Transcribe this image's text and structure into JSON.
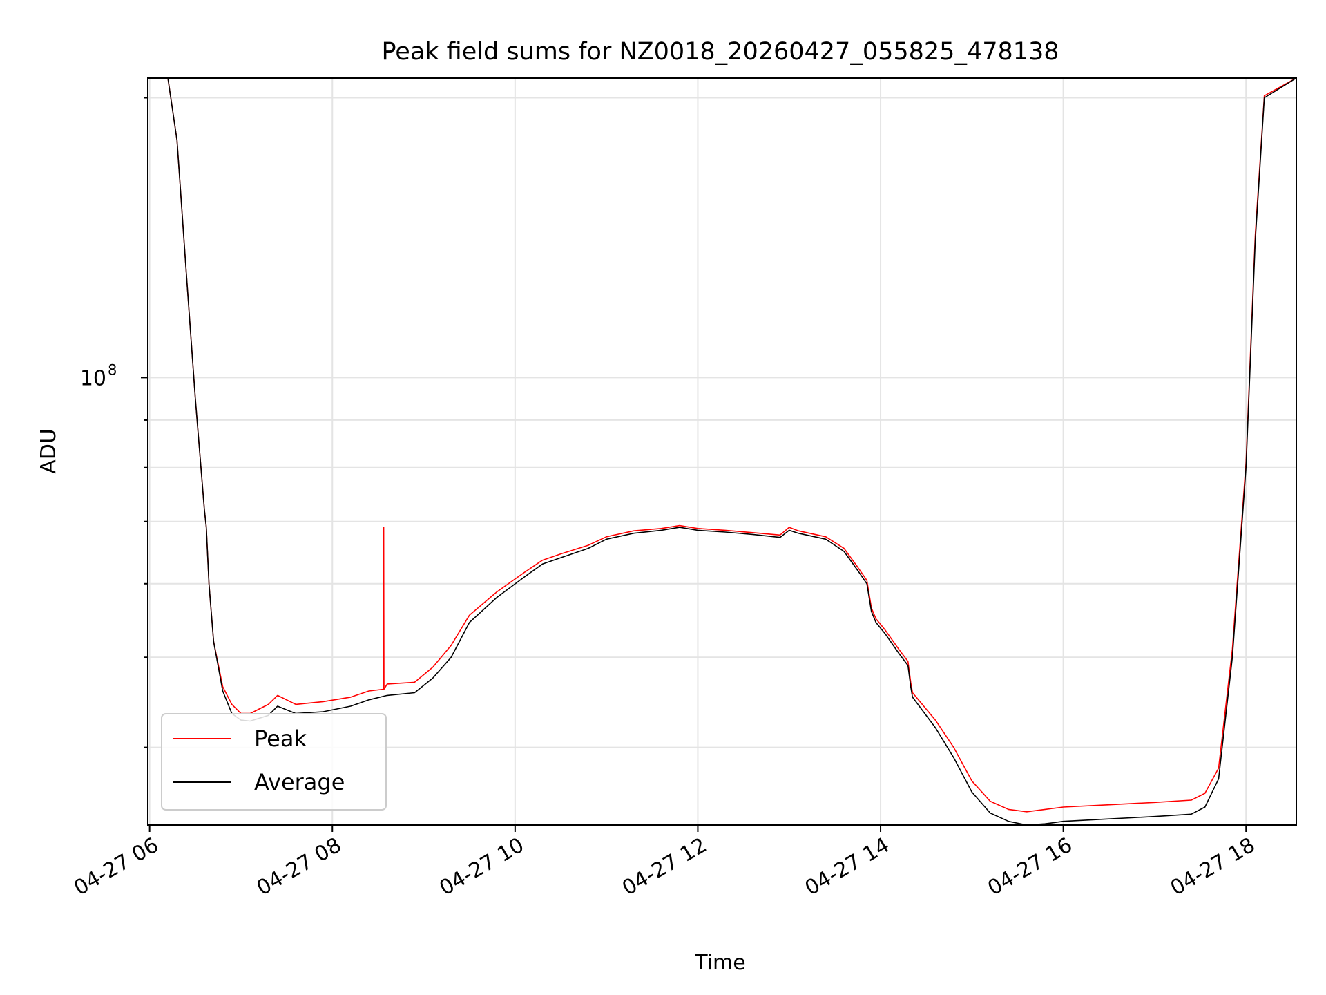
{
  "chart_data": {
    "type": "line",
    "title": "Peak field sums for NZ0018_20260427_055825_478138",
    "xlabel": "Time",
    "ylabel": "ADU",
    "yscale": "log",
    "grid": true,
    "xlim_hours": [
      5.98,
      18.55
    ],
    "ylim": [
      33000000,
      210000000
    ],
    "x_ticks": [
      {
        "hour": 6,
        "label": "04-27 06"
      },
      {
        "hour": 8,
        "label": "04-27 08"
      },
      {
        "hour": 10,
        "label": "04-27 10"
      },
      {
        "hour": 12,
        "label": "04-27 12"
      },
      {
        "hour": 14,
        "label": "04-27 14"
      },
      {
        "hour": 16,
        "label": "04-27 16"
      },
      {
        "hour": 18,
        "label": "04-27 18"
      }
    ],
    "y_major_ticks": [
      {
        "value": 100000000,
        "base": "10",
        "exponent": "8"
      }
    ],
    "y_minor_ticks": [
      40000000,
      50000000,
      60000000,
      70000000,
      80000000,
      90000000,
      200000000
    ],
    "legend": {
      "position": "lower-left",
      "entries": [
        {
          "label": "Peak",
          "color": "#ff0000"
        },
        {
          "label": "Average",
          "color": "#000000"
        }
      ]
    },
    "series": [
      {
        "name": "Average",
        "color": "#000000",
        "x_hours": [
          5.98,
          6.2,
          6.3,
          6.4,
          6.5,
          6.6,
          6.62,
          6.65,
          6.7,
          6.8,
          6.9,
          7.0,
          7.1,
          7.3,
          7.4,
          7.6,
          7.9,
          8.2,
          8.4,
          8.6,
          8.9,
          9.1,
          9.3,
          9.5,
          9.8,
          10.1,
          10.3,
          10.5,
          10.8,
          11.0,
          11.3,
          11.6,
          11.8,
          12.0,
          12.3,
          12.6,
          12.9,
          13.0,
          13.1,
          13.4,
          13.6,
          13.75,
          13.85,
          13.9,
          13.95,
          14.05,
          14.2,
          14.3,
          14.33,
          14.35,
          14.6,
          14.8,
          15.0,
          15.2,
          15.4,
          15.6,
          15.8,
          16.0,
          16.5,
          17.0,
          17.4,
          17.55,
          17.7,
          17.85,
          18.0,
          18.1,
          18.2,
          18.55
        ],
        "y": [
          210000000,
          210000000,
          180000000,
          130000000,
          95000000,
          72000000,
          69000000,
          60000000,
          52000000,
          46000000,
          43500000,
          42800000,
          42700000,
          43300000,
          44300000,
          43500000,
          43700000,
          44300000,
          45000000,
          45500000,
          45800000,
          47500000,
          50000000,
          54500000,
          58000000,
          61000000,
          63000000,
          64000000,
          65500000,
          67000000,
          68000000,
          68500000,
          69000000,
          68500000,
          68200000,
          67800000,
          67300000,
          68500000,
          68000000,
          67000000,
          65000000,
          62000000,
          60000000,
          56000000,
          54500000,
          53000000,
          50500000,
          49000000,
          46500000,
          45300000,
          42000000,
          39000000,
          35800000,
          34000000,
          33300000,
          33000000,
          33100000,
          33300000,
          33500000,
          33700000,
          33900000,
          34500000,
          37000000,
          50000000,
          80000000,
          140000000,
          200000000,
          210000000
        ]
      },
      {
        "name": "Peak",
        "color": "#ff0000",
        "x_hours": [
          5.98,
          6.2,
          6.3,
          6.4,
          6.5,
          6.6,
          6.62,
          6.65,
          6.7,
          6.8,
          6.9,
          7.0,
          7.1,
          7.3,
          7.4,
          7.6,
          7.9,
          8.2,
          8.4,
          8.56,
          8.562,
          8.565,
          8.6,
          8.9,
          9.1,
          9.3,
          9.5,
          9.8,
          10.1,
          10.3,
          10.5,
          10.8,
          11.0,
          11.3,
          11.6,
          11.8,
          12.0,
          12.3,
          12.6,
          12.9,
          13.0,
          13.1,
          13.4,
          13.6,
          13.75,
          13.85,
          13.9,
          13.95,
          14.05,
          14.2,
          14.3,
          14.33,
          14.35,
          14.6,
          14.8,
          15.0,
          15.2,
          15.4,
          15.6,
          15.8,
          16.0,
          16.5,
          17.0,
          17.4,
          17.55,
          17.7,
          17.85,
          18.0,
          18.1,
          18.2,
          18.55
        ],
        "y": [
          210000000,
          210000000,
          180000000,
          130000000,
          95000000,
          72000000,
          69000000,
          60000000,
          52000000,
          46500000,
          44500000,
          43500000,
          43500000,
          44500000,
          45500000,
          44500000,
          44800000,
          45300000,
          46000000,
          46200000,
          69000000,
          46200000,
          46800000,
          47000000,
          48800000,
          51500000,
          55500000,
          58800000,
          61700000,
          63600000,
          64600000,
          66000000,
          67400000,
          68400000,
          68800000,
          69300000,
          68800000,
          68500000,
          68100000,
          67700000,
          69000000,
          68400000,
          67400000,
          65500000,
          62500000,
          60500000,
          56500000,
          55000000,
          53500000,
          51000000,
          49500000,
          47000000,
          45800000,
          42800000,
          40000000,
          36800000,
          35000000,
          34300000,
          34100000,
          34300000,
          34500000,
          34700000,
          34900000,
          35100000,
          35700000,
          38000000,
          51000000,
          81000000,
          142000000,
          201000000,
          210000000
        ]
      }
    ]
  }
}
